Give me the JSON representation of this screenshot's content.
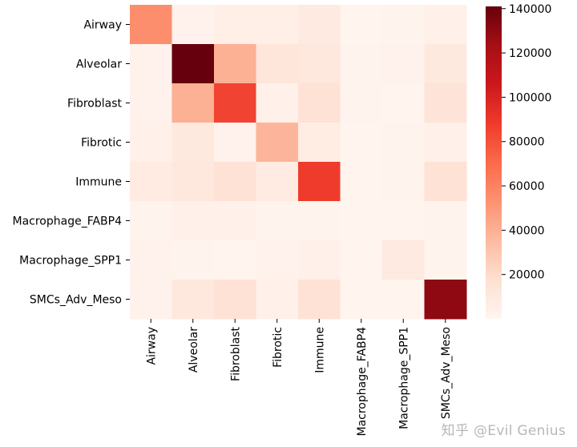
{
  "watermark": "知乎 @Evil Genius",
  "chart_data": {
    "type": "heatmap",
    "title": "",
    "xlabel": "",
    "ylabel": "",
    "rows": [
      "Airway",
      "Alveolar",
      "Fibroblast",
      "Fibrotic",
      "Immune",
      "Macrophage_FABP4",
      "Macrophage_SPP1",
      "SMCs_Adv_Meso"
    ],
    "columns": [
      "Airway",
      "Alveolar",
      "Fibroblast",
      "Fibrotic",
      "Immune",
      "Macrophage_FABP4",
      "Macrophage_SPP1",
      "SMCs_Adv_Meso"
    ],
    "values": [
      [
        55000,
        3000,
        5000,
        5000,
        9000,
        1000,
        2000,
        4000
      ],
      [
        2500,
        141000,
        40000,
        13000,
        11000,
        1500,
        2500,
        10000
      ],
      [
        3000,
        40000,
        85000,
        4000,
        16000,
        1500,
        1000,
        14000
      ],
      [
        4000,
        10000,
        3000,
        38000,
        7000,
        1000,
        2000,
        4000
      ],
      [
        8000,
        11000,
        16000,
        8000,
        88000,
        1000,
        2000,
        16000
      ],
      [
        1500,
        4000,
        4000,
        2000,
        2000,
        1000,
        1000,
        1500
      ],
      [
        3000,
        2000,
        1000,
        3000,
        4000,
        1000,
        9000,
        2000
      ],
      [
        3000,
        11000,
        16000,
        4000,
        16000,
        1000,
        1000,
        130000
      ]
    ],
    "colorbar": {
      "min": 0,
      "max": 141000,
      "ticks": [
        20000,
        40000,
        60000,
        80000,
        100000,
        120000,
        140000
      ],
      "colormap": "Reds",
      "stops": [
        "#fff5f0",
        "#fee0d2",
        "#fcbba1",
        "#fc9272",
        "#fb6a4a",
        "#ef3b2c",
        "#cb181d",
        "#a50f15",
        "#67000d"
      ]
    }
  }
}
